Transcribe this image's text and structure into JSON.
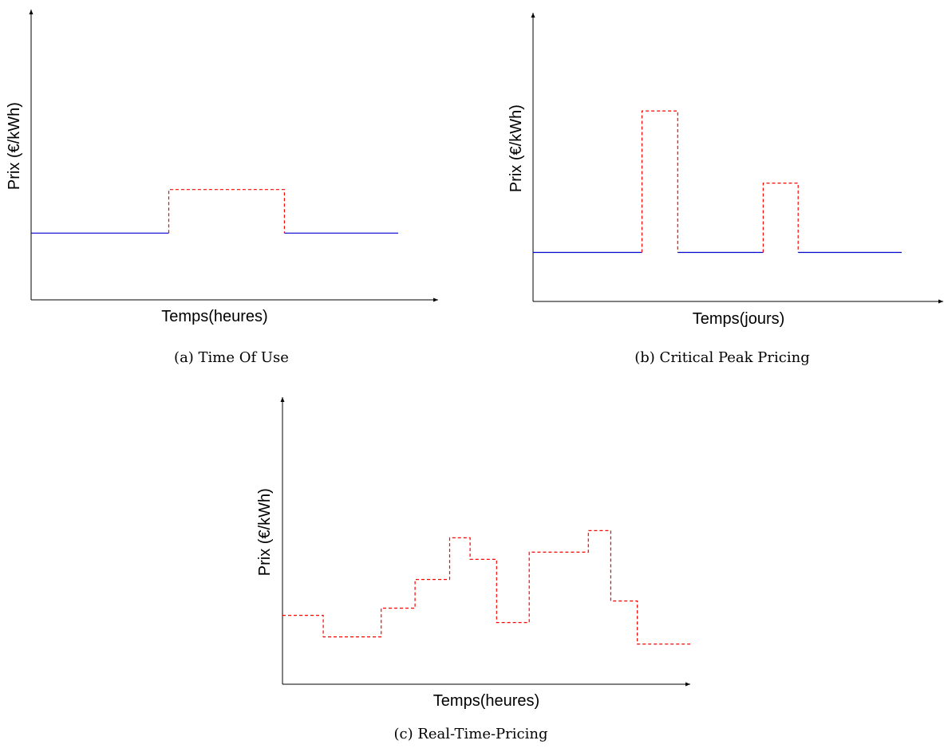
{
  "chart_data": [
    {
      "type": "line",
      "step": true,
      "caption": "(a) Time Of Use",
      "xlabel": "Temps(heures)",
      "ylabel": "Prix (€/kWh)",
      "xlim": [
        0,
        100
      ],
      "ylim": [
        0,
        100
      ],
      "grid": false,
      "segments": [
        {
          "x": [
            0,
            37.5
          ],
          "y": [
            23,
            23
          ],
          "color": "#0000cc",
          "style": "solid"
        },
        {
          "x": [
            37.5,
            37.5,
            69,
            69
          ],
          "y": [
            23,
            38,
            38,
            23
          ],
          "color": "#ff0000",
          "style": "dashed"
        },
        {
          "x": [
            69,
            100
          ],
          "y": [
            23,
            23
          ],
          "color": "#0000cc",
          "style": "solid"
        }
      ]
    },
    {
      "type": "line",
      "step": true,
      "caption": "(b) Critical Peak Pricing",
      "xlabel": "Temps(jours)",
      "ylabel": "Prix (€/kWh)",
      "xlim": [
        0,
        100
      ],
      "ylim": [
        0,
        100
      ],
      "grid": false,
      "segments": [
        {
          "x": [
            0,
            26.5
          ],
          "y": [
            17,
            17
          ],
          "color": "#0000cc",
          "style": "solid"
        },
        {
          "x": [
            26.5,
            26.5,
            35.2,
            35.2
          ],
          "y": [
            17,
            66,
            66,
            17
          ],
          "color": "#ff0000",
          "style": "dashed"
        },
        {
          "x": [
            35.2,
            56
          ],
          "y": [
            17,
            17
          ],
          "color": "#0000cc",
          "style": "solid"
        },
        {
          "x": [
            56,
            56,
            64.5,
            64.5
          ],
          "y": [
            17,
            41,
            41,
            17
          ],
          "color": "#ff0000",
          "style": "dashed"
        },
        {
          "x": [
            64.5,
            89.7
          ],
          "y": [
            17,
            17
          ],
          "color": "#0000cc",
          "style": "solid"
        }
      ]
    },
    {
      "type": "line",
      "step": true,
      "caption": "(c) Real-Time-Pricing",
      "xlabel": "Temps(heures)",
      "ylabel": "Prix (€/kWh)",
      "xlim": [
        0,
        100
      ],
      "ylim": [
        0,
        100
      ],
      "grid": false,
      "segments": [
        {
          "x": [
            0,
            10,
            10,
            24.2,
            24.2,
            32.5,
            32.5,
            41,
            41,
            46,
            46,
            52.5,
            52.5,
            60.5,
            60.5,
            75,
            75,
            80.5,
            80.5,
            87,
            87,
            91,
            91,
            100
          ],
          "y": [
            24,
            24,
            16.5,
            16.5,
            26.5,
            26.5,
            36.5,
            36.5,
            51,
            51,
            43.5,
            43.5,
            21.5,
            21.5,
            46,
            46,
            53.5,
            53.5,
            29,
            29,
            14,
            14,
            14,
            14
          ],
          "color": "#ff0000",
          "style": "dashed"
        }
      ]
    }
  ]
}
